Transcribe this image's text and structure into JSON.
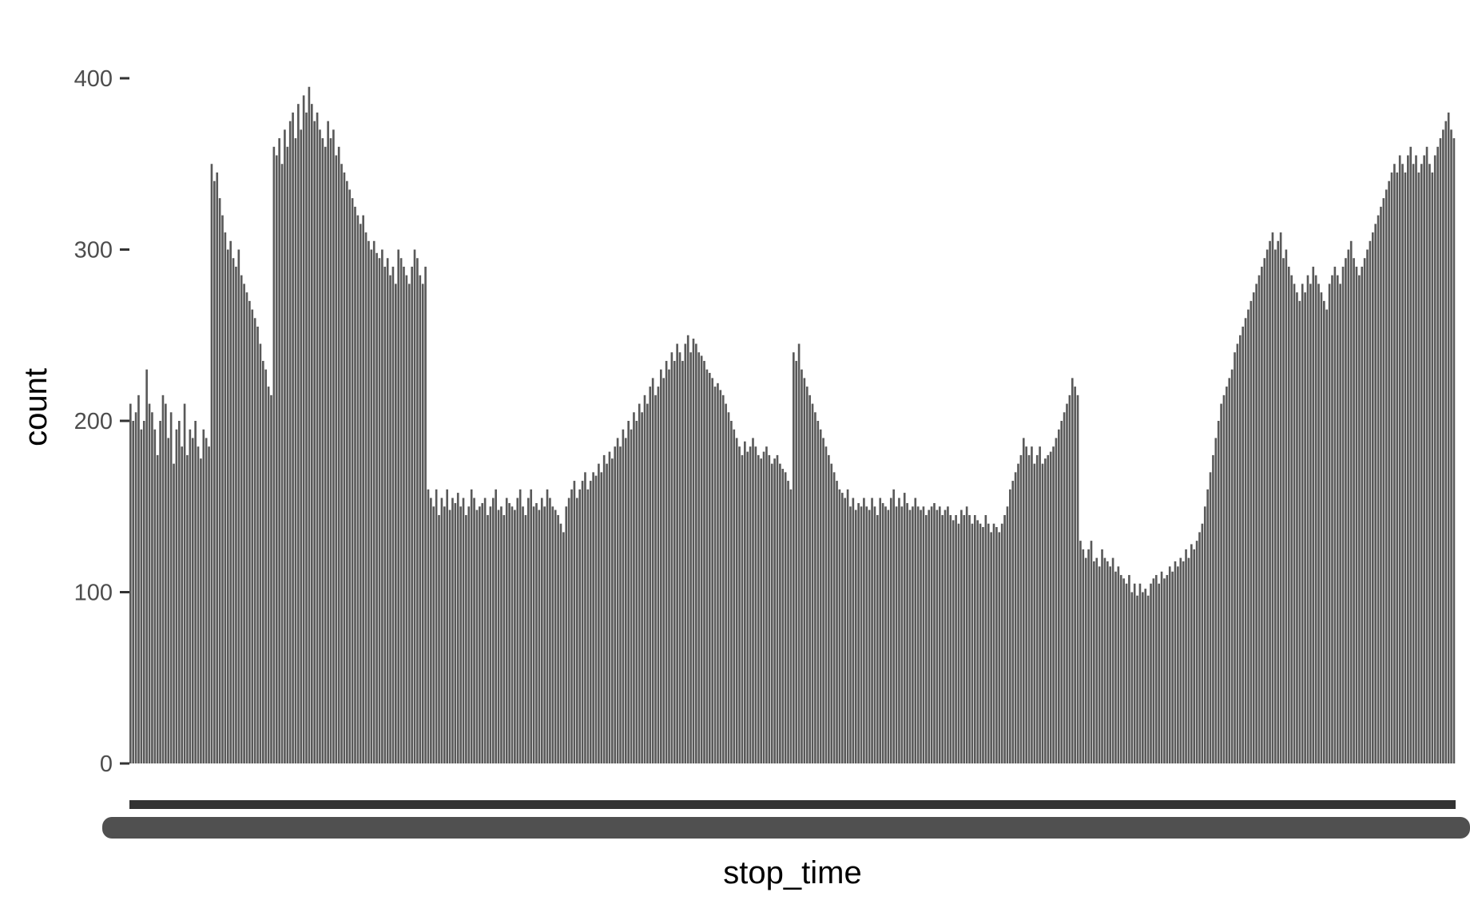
{
  "chart_data": {
    "type": "bar",
    "title": "",
    "xlabel": "stop_time",
    "ylabel": "count",
    "ylim": [
      0,
      420
    ],
    "y_ticks": [
      {
        "value": 0,
        "label": "0"
      },
      {
        "value": 100,
        "label": "100"
      },
      {
        "value": 200,
        "label": "200"
      },
      {
        "value": 300,
        "label": "300"
      },
      {
        "value": 400,
        "label": "400"
      }
    ],
    "grid": false,
    "legend": "none",
    "bar_color": "#595959",
    "series": [
      {
        "values": [
          210,
          200,
          205,
          215,
          195,
          200,
          230,
          210,
          205,
          195,
          180,
          200,
          215,
          210,
          190,
          205,
          175,
          195,
          200,
          185,
          210,
          180,
          195,
          190,
          200,
          185,
          178,
          195,
          190,
          185,
          350,
          340,
          345,
          330,
          320,
          310,
          300,
          305,
          295,
          290,
          300,
          285,
          280,
          275,
          270,
          265,
          260,
          255,
          245,
          235,
          230,
          220,
          215,
          360,
          355,
          365,
          350,
          370,
          360,
          375,
          380,
          365,
          385,
          370,
          390,
          380,
          395,
          385,
          375,
          380,
          370,
          365,
          360,
          375,
          365,
          370,
          355,
          360,
          350,
          345,
          340,
          335,
          330,
          325,
          320,
          315,
          320,
          310,
          305,
          300,
          305,
          298,
          295,
          300,
          290,
          295,
          285,
          290,
          280,
          300,
          295,
          290,
          285,
          280,
          290,
          300,
          295,
          285,
          280,
          290,
          160,
          155,
          150,
          160,
          145,
          155,
          150,
          160,
          148,
          155,
          152,
          158,
          150,
          155,
          145,
          150,
          160,
          155,
          148,
          150,
          152,
          155,
          145,
          150,
          155,
          160,
          148,
          150,
          145,
          155,
          152,
          150,
          148,
          155,
          160,
          150,
          145,
          155,
          160,
          150,
          152,
          148,
          155,
          150,
          160,
          155,
          150,
          148,
          145,
          140,
          135,
          150,
          155,
          160,
          165,
          155,
          160,
          165,
          170,
          160,
          165,
          170,
          168,
          175,
          170,
          180,
          175,
          182,
          178,
          185,
          190,
          185,
          195,
          190,
          200,
          195,
          205,
          200,
          210,
          205,
          215,
          210,
          220,
          225,
          215,
          220,
          230,
          225,
          235,
          230,
          240,
          235,
          245,
          240,
          235,
          245,
          250,
          240,
          248,
          245,
          240,
          238,
          235,
          230,
          228,
          225,
          220,
          222,
          218,
          215,
          210,
          205,
          200,
          195,
          190,
          185,
          180,
          188,
          182,
          185,
          190,
          185,
          180,
          178,
          182,
          185,
          180,
          175,
          178,
          180,
          175,
          172,
          170,
          165,
          160,
          240,
          235,
          245,
          230,
          225,
          220,
          215,
          210,
          205,
          200,
          195,
          190,
          185,
          180,
          175,
          170,
          165,
          160,
          158,
          155,
          160,
          150,
          155,
          148,
          152,
          150,
          155,
          150,
          148,
          155,
          150,
          145,
          155,
          152,
          150,
          148,
          155,
          160,
          150,
          155,
          150,
          158,
          152,
          148,
          150,
          155,
          150,
          148,
          150,
          145,
          148,
          150,
          152,
          148,
          150,
          145,
          148,
          150,
          145,
          142,
          145,
          140,
          148,
          145,
          150,
          145,
          140,
          145,
          142,
          140,
          138,
          145,
          140,
          135,
          140,
          138,
          135,
          140,
          145,
          150,
          160,
          165,
          170,
          175,
          180,
          190,
          185,
          180,
          185,
          175,
          180,
          185,
          175,
          178,
          180,
          182,
          185,
          190,
          195,
          200,
          205,
          210,
          215,
          225,
          220,
          215,
          130,
          125,
          120,
          125,
          130,
          118,
          120,
          115,
          125,
          120,
          118,
          115,
          120,
          112,
          115,
          110,
          108,
          105,
          110,
          100,
          105,
          98,
          105,
          100,
          102,
          98,
          105,
          108,
          110,
          105,
          112,
          108,
          110,
          115,
          112,
          118,
          115,
          120,
          118,
          125,
          120,
          128,
          125,
          130,
          135,
          140,
          150,
          160,
          170,
          180,
          190,
          200,
          210,
          215,
          220,
          225,
          230,
          240,
          245,
          250,
          255,
          260,
          265,
          270,
          275,
          280,
          285,
          290,
          295,
          300,
          305,
          310,
          300,
          305,
          310,
          295,
          300,
          290,
          285,
          280,
          275,
          270,
          280,
          275,
          285,
          280,
          290,
          285,
          280,
          275,
          270,
          265,
          280,
          285,
          290,
          285,
          280,
          290,
          295,
          300,
          305,
          295,
          290,
          285,
          290,
          295,
          300,
          305,
          310,
          315,
          320,
          325,
          330,
          335,
          340,
          345,
          350,
          345,
          355,
          350,
          345,
          355,
          360,
          350,
          355,
          345,
          350,
          355,
          360,
          350,
          345,
          355,
          360,
          365,
          370,
          375,
          380,
          370,
          365
        ]
      }
    ]
  }
}
